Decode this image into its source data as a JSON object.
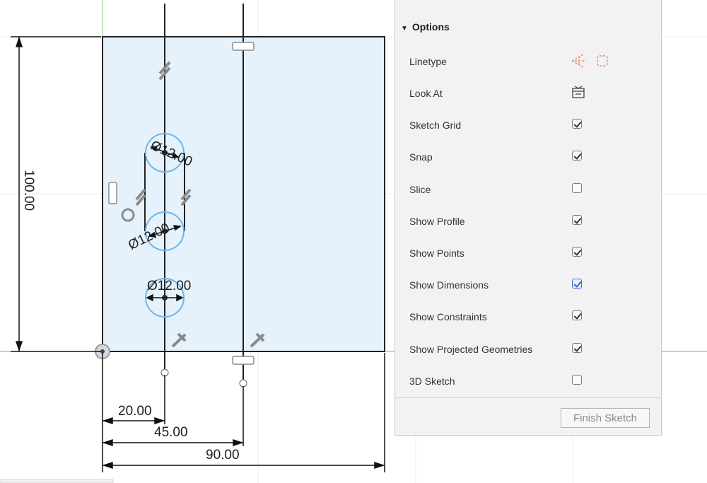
{
  "sketch": {
    "dimensions": {
      "height": "100.00",
      "width_total": "90.00",
      "offset_line_2": "45.00",
      "offset_line_1": "20.00",
      "diameter_top": "Ø12.00",
      "diameter_mid": "Ø12.00",
      "diameter_bottom": "Ø12.00"
    }
  },
  "options_panel": {
    "header": "Options",
    "rows": [
      {
        "label": "Linetype",
        "control": "linetype-icons"
      },
      {
        "label": "Look At",
        "control": "look-at-icon"
      },
      {
        "label": "Sketch Grid",
        "checked": true
      },
      {
        "label": "Snap",
        "checked": true
      },
      {
        "label": "Slice",
        "checked": false
      },
      {
        "label": "Show Profile",
        "checked": true
      },
      {
        "label": "Show Points",
        "checked": true
      },
      {
        "label": "Show Dimensions",
        "checked": true,
        "focused": true
      },
      {
        "label": "Show Constraints",
        "checked": true
      },
      {
        "label": "Show Projected Geometries",
        "checked": true
      },
      {
        "label": "3D Sketch",
        "checked": false
      }
    ],
    "finish_button": "Finish Sketch"
  },
  "colors": {
    "profile_fill": "#e6f2fb",
    "circle_stroke": "#6ab7e8",
    "x_axis": "#e07a7a",
    "y_axis": "#7fcf7f",
    "linetype_icon": "#e6876a",
    "checkbox_focus": "#3a6ec7"
  }
}
